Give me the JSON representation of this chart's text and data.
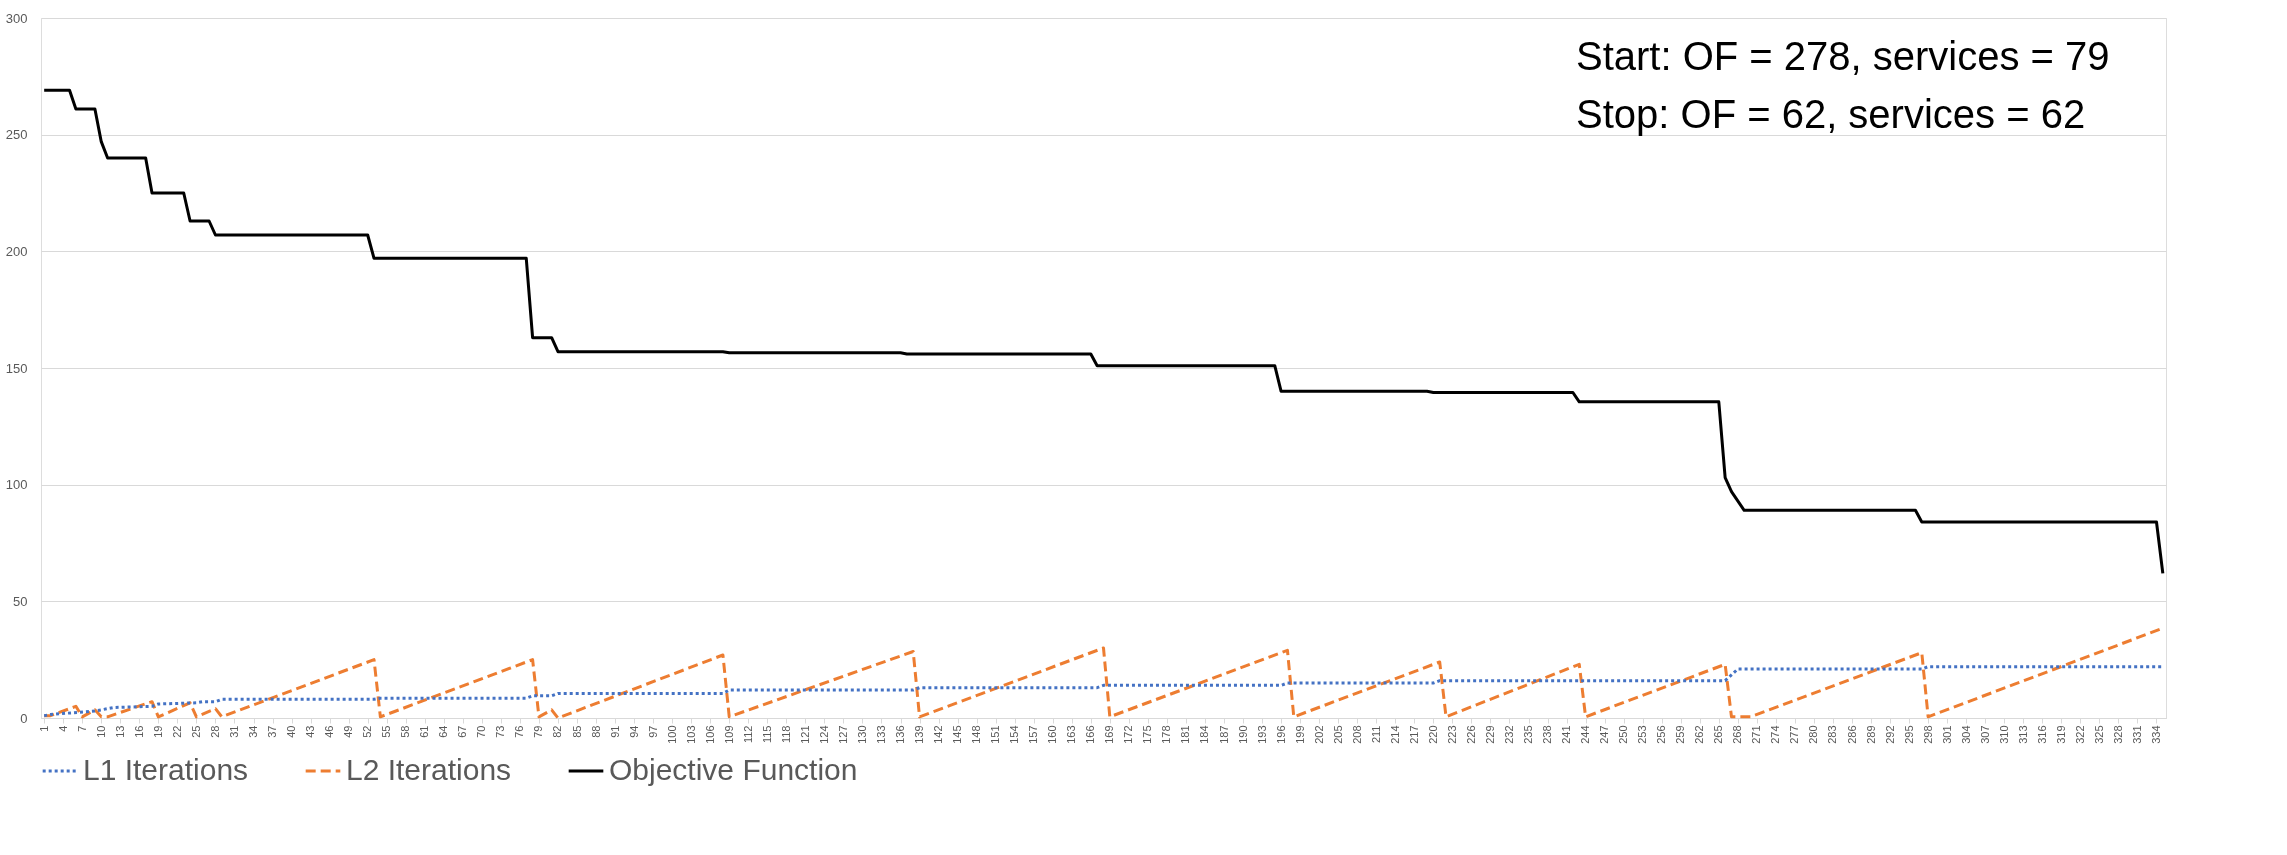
{
  "chart_data": {
    "type": "line",
    "xlim": [
      0.5,
      335.5
    ],
    "xticks": [
      1,
      4,
      7,
      10,
      13,
      16,
      19,
      22,
      25,
      28,
      31,
      34,
      37,
      40,
      43,
      46,
      49,
      52,
      55,
      58,
      61,
      64,
      67,
      70,
      73,
      76,
      79,
      82,
      85,
      88,
      91,
      94,
      97,
      100,
      103,
      106,
      109,
      112,
      115,
      118,
      121,
      124,
      127,
      130,
      133,
      136,
      139,
      142,
      145,
      148,
      151,
      154,
      157,
      160,
      163,
      166,
      169,
      172,
      175,
      178,
      181,
      184,
      187,
      190,
      193,
      196,
      199,
      202,
      205,
      208,
      211,
      214,
      217,
      220,
      223,
      226,
      229,
      232,
      235,
      238,
      241,
      244,
      247,
      250,
      253,
      256,
      259,
      262,
      265,
      268,
      271,
      274,
      277,
      280,
      283,
      286,
      289,
      292,
      295,
      298,
      301,
      304,
      307,
      310,
      313,
      316,
      319,
      322,
      325,
      328,
      331,
      334
    ],
    "ylim": [
      0,
      300
    ],
    "yticks": [
      0,
      50,
      100,
      150,
      200,
      250,
      300
    ],
    "grid": "y",
    "legend": "bottom",
    "annotations": [
      "Start: OF = 278, services = 79",
      "Stop: OF = 62, services = 62"
    ],
    "series": [
      {
        "name": "L1 Iterations",
        "color": "#4472c4",
        "line_style": "dotted",
        "x": [
          1,
          2,
          9,
          12,
          18,
          19,
          25,
          26,
          28,
          29,
          53,
          54,
          77,
          78,
          81,
          82,
          108,
          109,
          138,
          139,
          167,
          168,
          196,
          197,
          220,
          221,
          266,
          268,
          297,
          298,
          335
        ],
        "values": [
          1,
          1.5,
          3,
          4.5,
          5,
          6,
          6.5,
          7,
          7,
          8,
          8,
          8.5,
          8.5,
          9.5,
          9.5,
          10.5,
          10.5,
          12,
          12,
          13,
          13,
          14,
          14,
          15,
          15,
          16,
          16,
          21,
          21,
          22,
          22
        ]
      },
      {
        "name": "L2 Iterations",
        "color": "#ed7d31",
        "line_style": "dashed",
        "x": [
          1,
          2,
          6,
          7,
          9,
          10,
          11,
          18,
          19,
          24,
          25,
          28,
          29,
          53,
          54,
          78,
          79,
          81,
          82,
          108,
          109,
          138,
          139,
          168,
          169,
          197,
          198,
          221,
          222,
          243,
          244,
          266,
          267,
          270,
          297,
          298,
          335
        ],
        "values": [
          1,
          1,
          5,
          0.5,
          3.5,
          0.5,
          0.5,
          7,
          0.5,
          6.5,
          0.5,
          4,
          0.5,
          25,
          0.5,
          25,
          0.5,
          3.5,
          0,
          27,
          0.5,
          28.5,
          0.5,
          30,
          0.5,
          29,
          0.5,
          24,
          0.5,
          23,
          0.5,
          23,
          0.5,
          0.5,
          28,
          0.5,
          38.5
        ]
      },
      {
        "name": "Objective Function",
        "color": "#000000",
        "line_style": "solid",
        "x": [
          1,
          5,
          6,
          9,
          10,
          11,
          17,
          18,
          23,
          24,
          27,
          28,
          52,
          53,
          77,
          78,
          81,
          82,
          108,
          109,
          136,
          137,
          166,
          167,
          195,
          196,
          219,
          220,
          242,
          243,
          265,
          266,
          267,
          269,
          296,
          297,
          334,
          335
        ],
        "values": [
          269,
          269,
          261,
          261,
          247,
          240,
          240,
          225,
          225,
          213,
          213,
          207,
          207,
          197,
          197,
          163,
          163,
          157,
          157,
          156.5,
          156.5,
          156,
          156,
          151,
          151,
          140,
          140,
          139.5,
          139.5,
          135.5,
          135.5,
          103,
          97,
          89,
          89,
          84,
          84,
          62
        ]
      }
    ]
  }
}
